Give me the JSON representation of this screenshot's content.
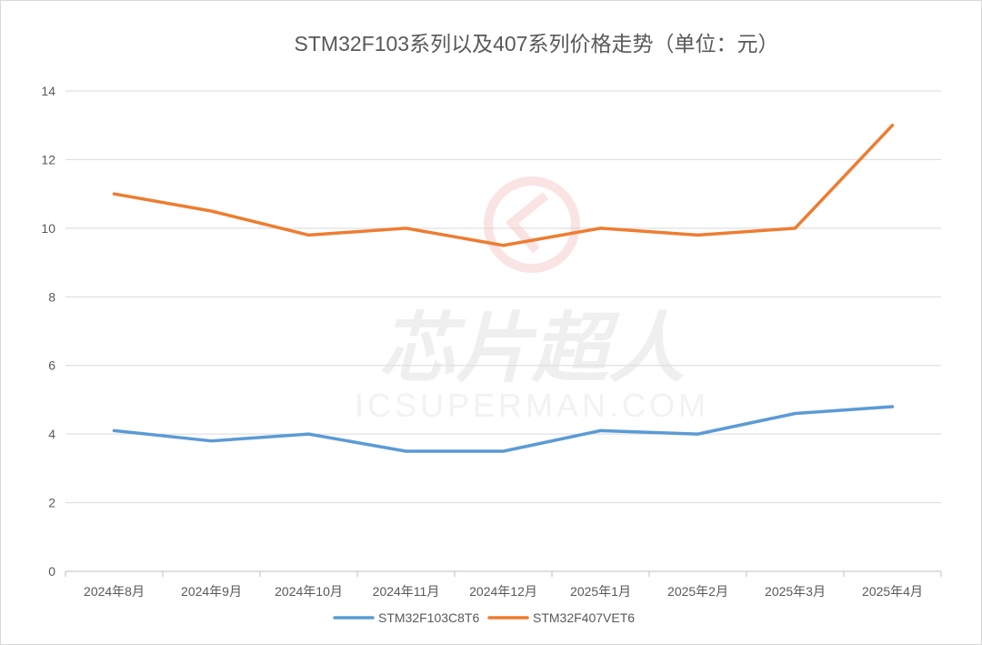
{
  "chart_data": {
    "type": "line",
    "title": "STM32F103系列以及407系列价格走势（单位：元）",
    "xlabel": "",
    "ylabel": "",
    "categories": [
      "2024年8月",
      "2024年9月",
      "2024年10月",
      "2024年11月",
      "2024年12月",
      "2025年1月",
      "2025年2月",
      "2025年3月",
      "2025年4月"
    ],
    "ylim": [
      0,
      14
    ],
    "yticks": [
      0,
      2,
      4,
      6,
      8,
      10,
      12,
      14
    ],
    "grid": true,
    "legend": "bottom",
    "series": [
      {
        "name": "STM32F103C8T6",
        "color": "#5b9bd5",
        "values": [
          4.1,
          3.8,
          4.0,
          3.5,
          3.5,
          4.1,
          4.0,
          4.6,
          4.8
        ]
      },
      {
        "name": "STM32F407VET6",
        "color": "#ed7d31",
        "values": [
          11.0,
          10.5,
          9.8,
          10.0,
          9.5,
          10.0,
          9.8,
          10.0,
          13.0
        ]
      }
    ]
  },
  "watermark": {
    "logo_text": "芯片超人",
    "site_text": "ICSUPERMAN.COM"
  }
}
